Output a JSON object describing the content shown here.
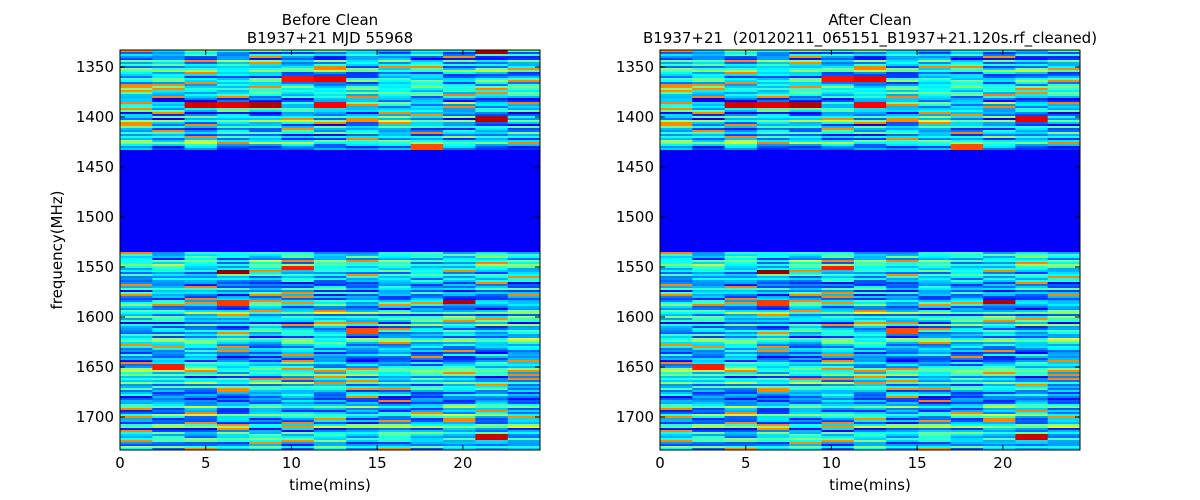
{
  "chart_data": [
    {
      "type": "heatmap",
      "title_line1": "Before Clean",
      "title_line2": "B1937+21 MJD 55968",
      "xlabel": "time(mins)",
      "ylabel": "frequency(MHz)",
      "xlim": [
        0,
        24.5
      ],
      "ylim": [
        1333,
        1733
      ],
      "xticks": [
        0,
        5,
        10,
        15,
        20
      ],
      "xtick_labels": [
        "0",
        "5",
        "10",
        "15",
        "20"
      ],
      "yticks": [
        1350,
        1400,
        1450,
        1500,
        1550,
        1600,
        1650,
        1700
      ],
      "ytick_labels": [
        "1350",
        "1400",
        "1450",
        "1500",
        "1550",
        "1600",
        "1650",
        "1700"
      ],
      "time_bins": 13,
      "blank_band_mhz": [
        1434,
        1534
      ],
      "colormap": "jet",
      "seed": 17,
      "hot_spots": [
        {
          "t": 2,
          "f": 1388,
          "v": 0.92
        },
        {
          "t": 3,
          "f": 1388,
          "v": 0.9
        },
        {
          "t": 4,
          "f": 1388,
          "v": 0.95
        },
        {
          "t": 6,
          "f": 1388,
          "v": 0.88
        },
        {
          "t": 5,
          "f": 1362,
          "v": 0.86
        },
        {
          "t": 6,
          "f": 1362,
          "v": 0.9
        },
        {
          "t": 11,
          "f": 1402,
          "v": 0.95
        },
        {
          "t": 11,
          "f": 1335,
          "v": 0.97
        },
        {
          "t": 3,
          "f": 1555,
          "v": 0.98
        },
        {
          "t": 5,
          "f": 1551,
          "v": 0.85
        },
        {
          "t": 3,
          "f": 1586,
          "v": 0.82
        },
        {
          "t": 10,
          "f": 1585,
          "v": 0.95
        },
        {
          "t": 1,
          "f": 1650,
          "v": 0.85
        },
        {
          "t": 11,
          "f": 1720,
          "v": 0.92
        },
        {
          "t": 7,
          "f": 1614,
          "v": 0.8
        },
        {
          "t": 9,
          "f": 1430,
          "v": 0.8
        }
      ]
    },
    {
      "type": "heatmap",
      "title_line1": "After Clean",
      "title_line2": "B1937+21  (20120211_065151_B1937+21.120s.rf_cleaned)",
      "xlabel": "time(mins)",
      "ylabel": "",
      "xlim": [
        0,
        24.5
      ],
      "ylim": [
        1333,
        1733
      ],
      "xticks": [
        0,
        5,
        10,
        15,
        20
      ],
      "xtick_labels": [
        "0",
        "5",
        "10",
        "15",
        "20"
      ],
      "yticks": [
        1350,
        1400,
        1450,
        1500,
        1550,
        1600,
        1650,
        1700
      ],
      "ytick_labels": [
        "1350",
        "1400",
        "1450",
        "1500",
        "1550",
        "1600",
        "1650",
        "1700"
      ],
      "time_bins": 13,
      "blank_band_mhz": [
        1434,
        1534
      ],
      "colormap": "jet",
      "seed": 17,
      "hot_spots": [
        {
          "t": 2,
          "f": 1388,
          "v": 0.92
        },
        {
          "t": 3,
          "f": 1388,
          "v": 0.9
        },
        {
          "t": 4,
          "f": 1388,
          "v": 0.95
        },
        {
          "t": 6,
          "f": 1388,
          "v": 0.88
        },
        {
          "t": 5,
          "f": 1362,
          "v": 0.86
        },
        {
          "t": 6,
          "f": 1362,
          "v": 0.9
        },
        {
          "t": 11,
          "f": 1402,
          "v": 0.9
        },
        {
          "t": 3,
          "f": 1555,
          "v": 0.98
        },
        {
          "t": 5,
          "f": 1551,
          "v": 0.85
        },
        {
          "t": 3,
          "f": 1586,
          "v": 0.82
        },
        {
          "t": 10,
          "f": 1585,
          "v": 0.95
        },
        {
          "t": 1,
          "f": 1650,
          "v": 0.85
        },
        {
          "t": 11,
          "f": 1720,
          "v": 0.92
        },
        {
          "t": 7,
          "f": 1614,
          "v": 0.8
        },
        {
          "t": 9,
          "f": 1430,
          "v": 0.8
        }
      ]
    }
  ]
}
